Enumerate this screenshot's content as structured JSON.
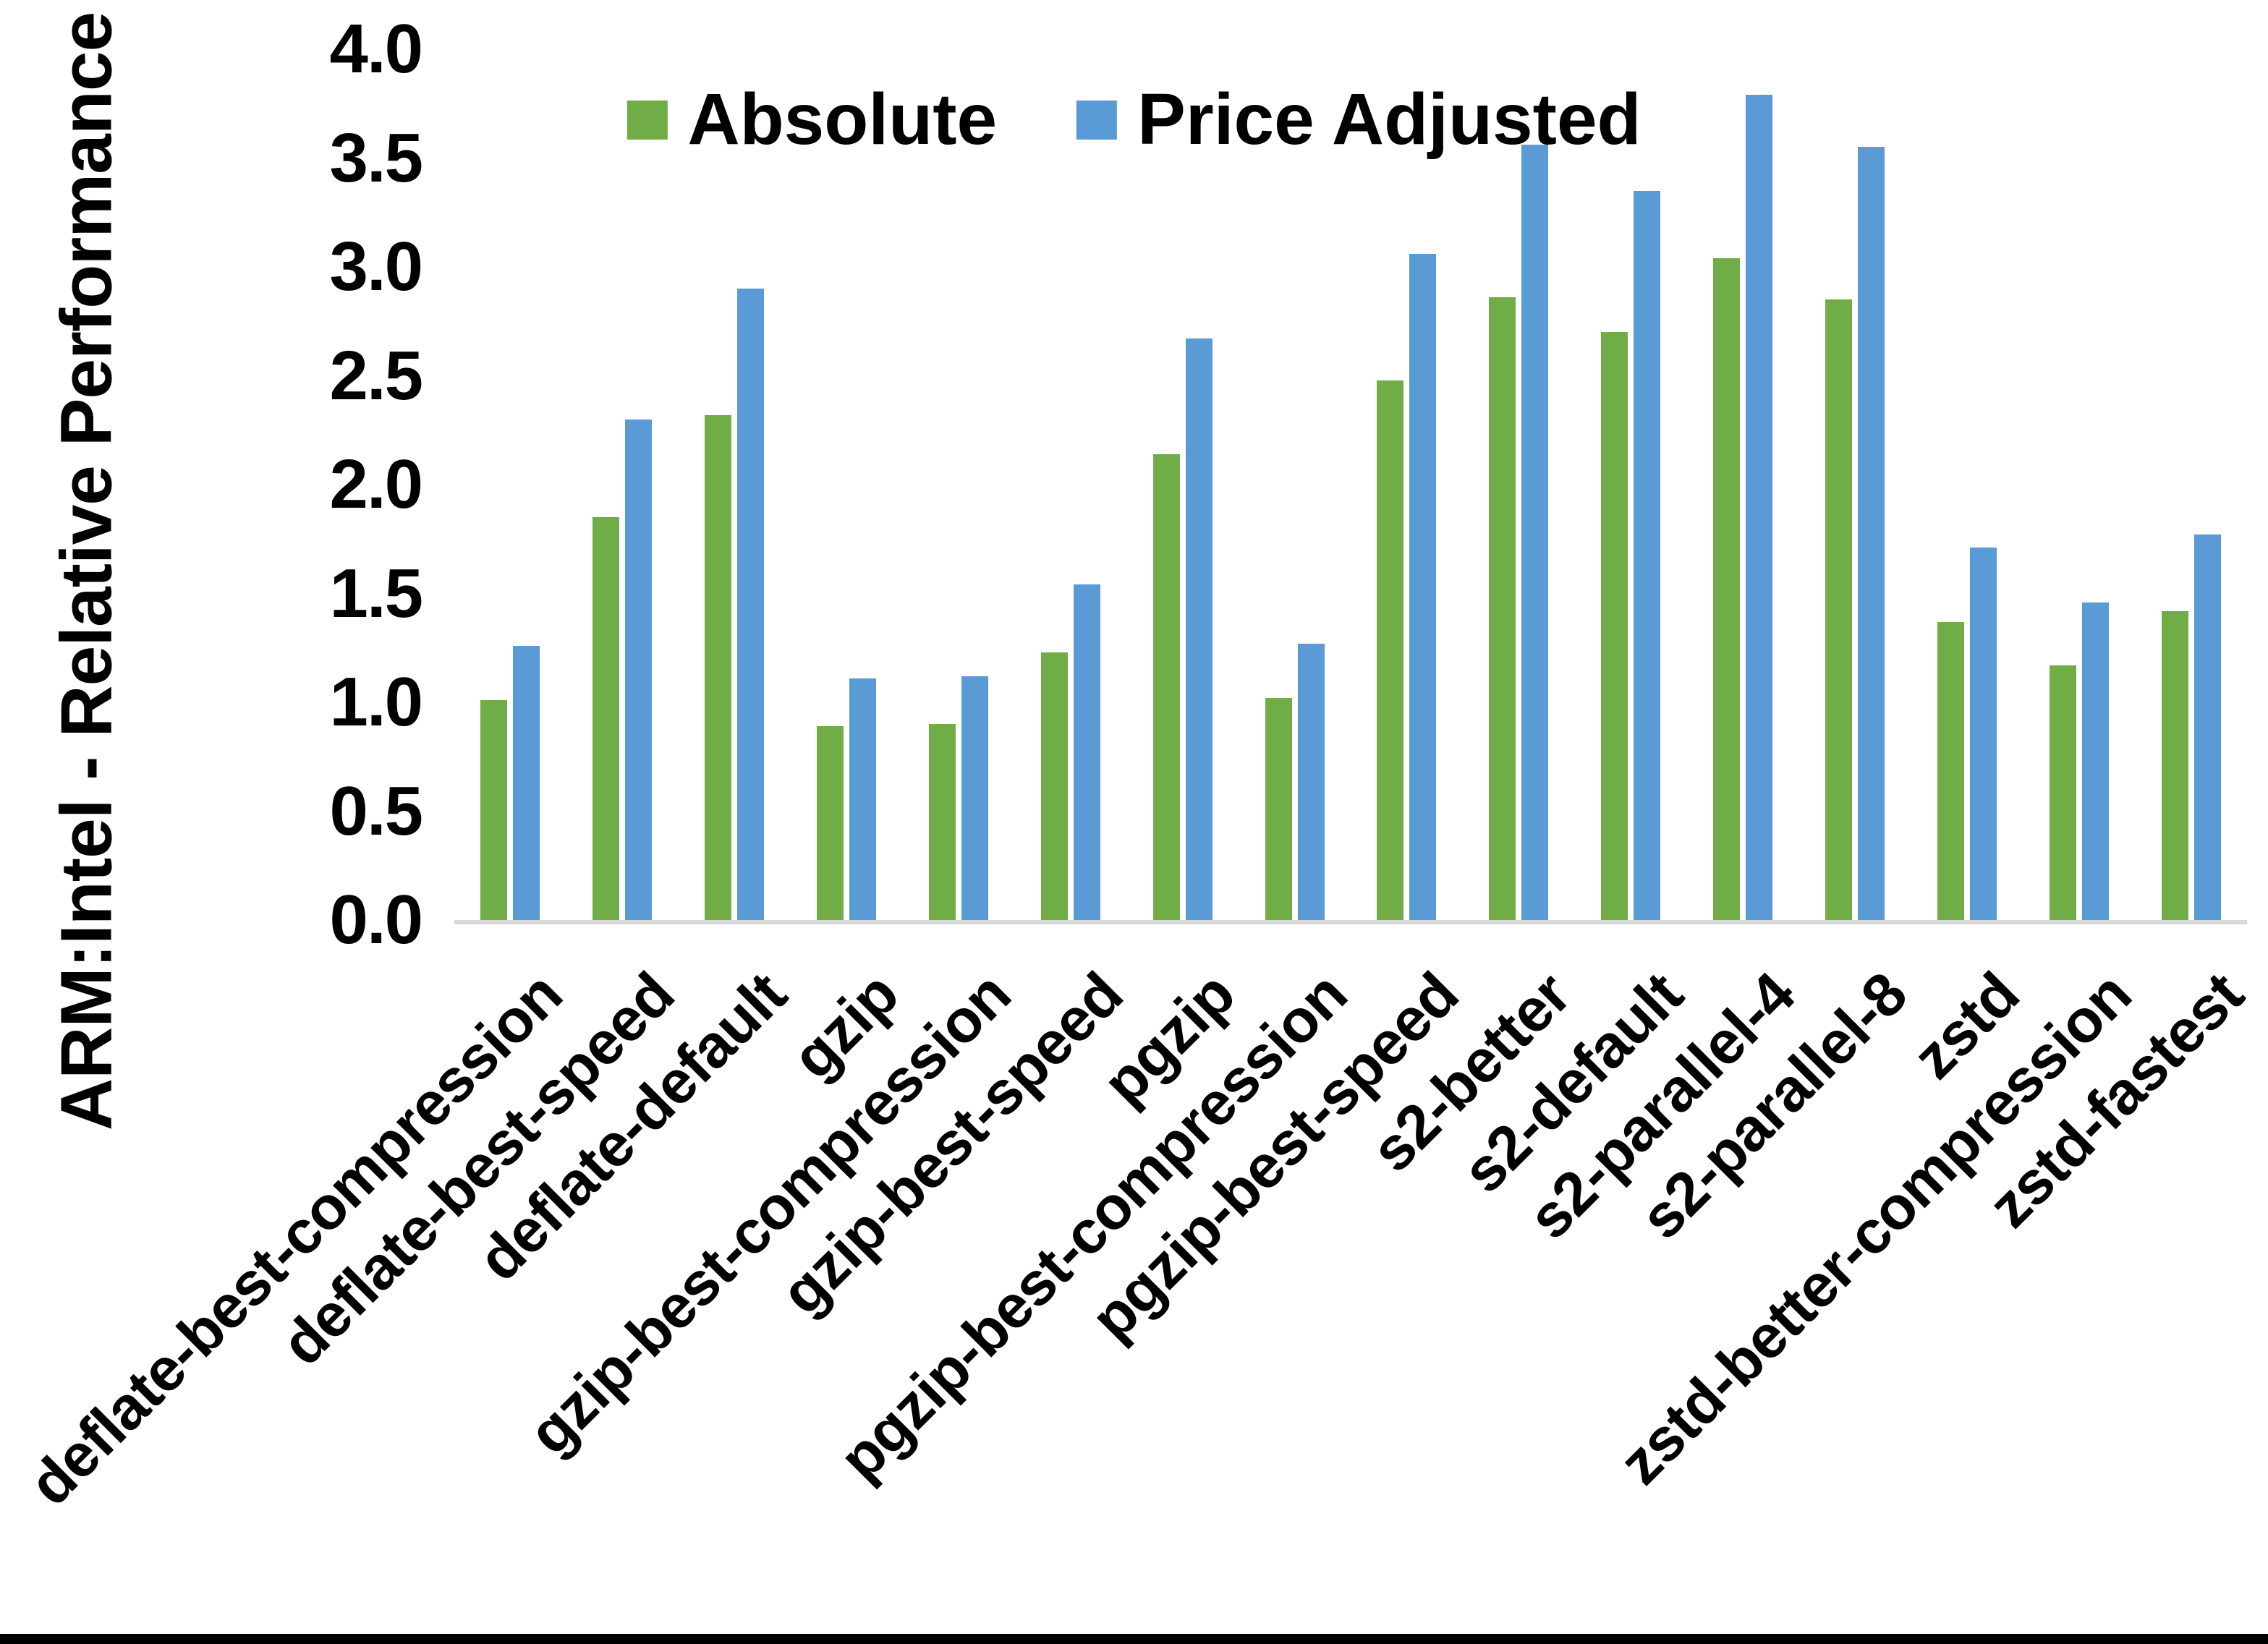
{
  "chart_data": {
    "type": "bar",
    "title": "",
    "xlabel": "",
    "ylabel": "ARM:Intel - Relative Performance",
    "ylim": [
      0.0,
      4.0
    ],
    "ytick_step": 0.5,
    "ytick_labels": [
      "0.0",
      "0.5",
      "1.0",
      "1.5",
      "2.0",
      "2.5",
      "3.0",
      "3.5",
      "4.0"
    ],
    "grid": false,
    "legend_position": "top-center",
    "categories": [
      "deflate-best-compression",
      "deflate-best-speed",
      "deflate-default",
      "gzip",
      "gzip-best-compression",
      "gzip-best-speed",
      "pgzip",
      "pgzip-best-compression",
      "pgzip-best-speed",
      "s2-better",
      "s2-default",
      "s2-parallel-4",
      "s2-parallel-8",
      "zstd",
      "zstd-better-compression",
      "zstd-fastest"
    ],
    "series": [
      {
        "name": "Absolute",
        "color": "#70AD47",
        "values": [
          1.01,
          1.85,
          2.32,
          0.89,
          0.9,
          1.23,
          2.14,
          1.02,
          2.48,
          2.86,
          2.7,
          3.04,
          2.85,
          1.37,
          1.17,
          1.42
        ]
      },
      {
        "name": "Price Adjusted",
        "color": "#5B9BD5",
        "values": [
          1.26,
          2.3,
          2.9,
          1.11,
          1.12,
          1.54,
          2.67,
          1.27,
          3.06,
          3.56,
          3.35,
          3.79,
          3.55,
          1.71,
          1.46,
          1.77
        ]
      }
    ]
  },
  "colors": {
    "axis_line": "#D8D8D8",
    "background": "#FFFFFF",
    "text": "#000000",
    "page_border": "#000000"
  }
}
